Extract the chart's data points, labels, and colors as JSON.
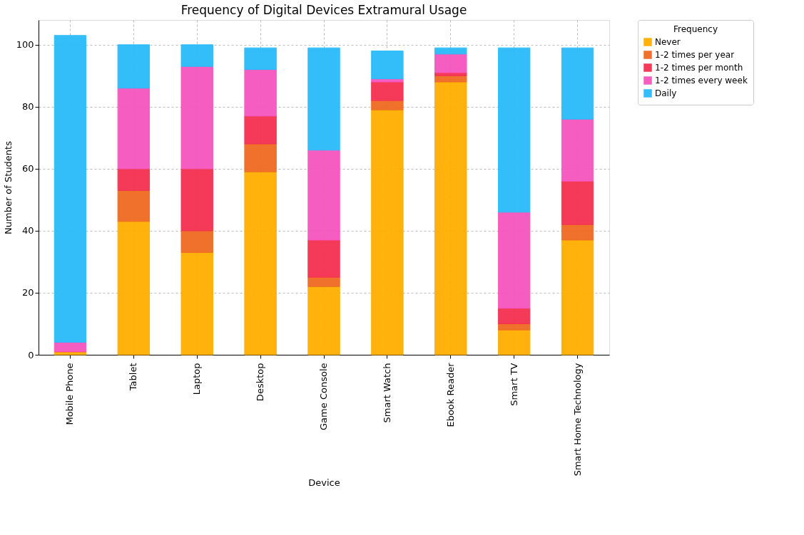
{
  "chart_data": {
    "type": "bar",
    "stacked": true,
    "title": "Frequency of Digital Devices Extramural Usage",
    "xlabel": "Device",
    "ylabel": "Number of Students",
    "legend_title": "Frequency",
    "categories": [
      "Mobile Phone",
      "Tablet",
      "Laptop",
      "Desktop",
      "Game Console",
      "Smart Watch",
      "Ebook Reader",
      "Smart TV",
      "Smart Home Technology"
    ],
    "series": [
      {
        "name": "Never",
        "color": "#ffae00",
        "values": [
          1,
          43,
          33,
          59,
          22,
          79,
          88,
          8,
          37
        ]
      },
      {
        "name": "1-2 times per year",
        "color": "#f06a20",
        "values": [
          0,
          10,
          7,
          9,
          3,
          3,
          2,
          2,
          5
        ]
      },
      {
        "name": "1-2 times per month",
        "color": "#f43050",
        "values": [
          0,
          7,
          20,
          9,
          12,
          6,
          1,
          5,
          14
        ]
      },
      {
        "name": "1-2 times every week",
        "color": "#f655be",
        "values": [
          3,
          26,
          33,
          15,
          29,
          1,
          6,
          31,
          20
        ]
      },
      {
        "name": "Daily",
        "color": "#29bbfa",
        "values": [
          99,
          14,
          7,
          7,
          33,
          9,
          2,
          53,
          23
        ]
      }
    ],
    "ylim": [
      0,
      108
    ],
    "yticks": [
      0,
      20,
      40,
      60,
      80,
      100
    ],
    "grid": true,
    "legend": "top right"
  }
}
